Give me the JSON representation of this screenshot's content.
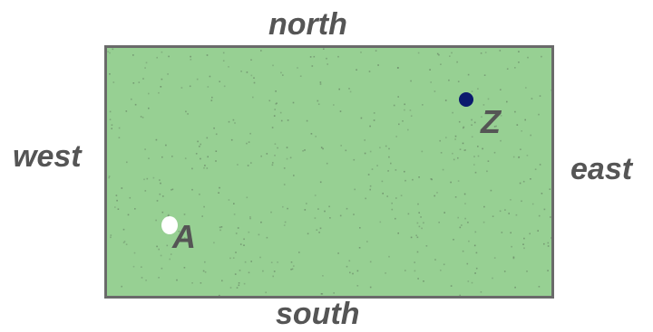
{
  "directions": {
    "north": "north",
    "south": "south",
    "west": "west",
    "east": "east"
  },
  "points": {
    "z": {
      "label": "Z",
      "color": "#0b1a6e"
    },
    "a": {
      "label": "A",
      "color": "#ffffff"
    }
  },
  "colors": {
    "field": "#97d093",
    "border": "#6a6a6a",
    "text": "#555555",
    "speckle": "#6f8f6c"
  }
}
